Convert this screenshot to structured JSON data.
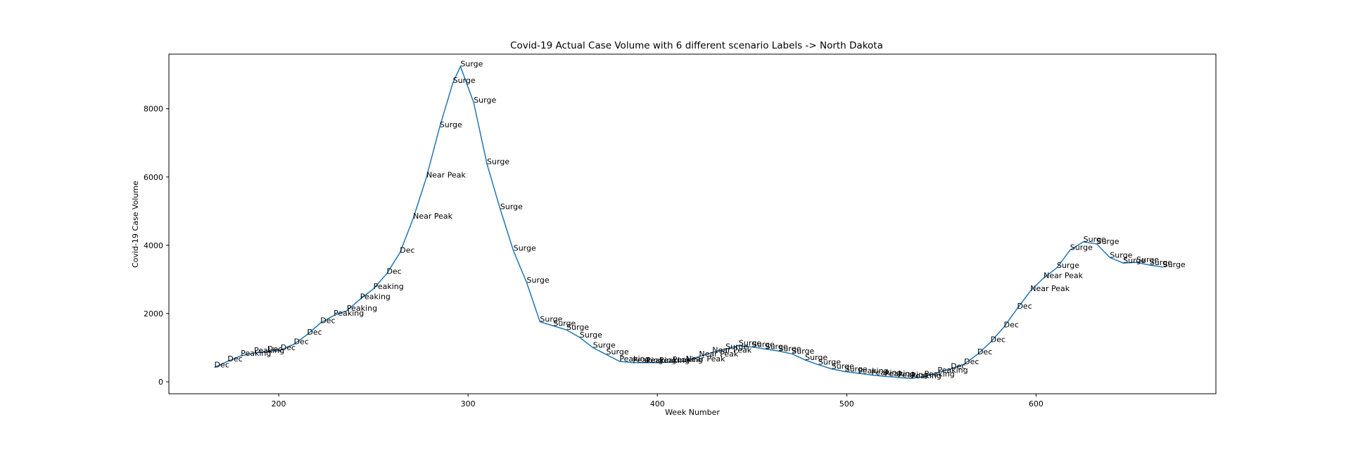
{
  "chart_data": {
    "type": "line",
    "title": "Covid-19 Actual Case Volume with 6 different scenario Labels  -> North Dakota",
    "xlabel": "Week Number",
    "ylabel": "Covid-19 Case Volume",
    "xlim": [
      142,
      695
    ],
    "ylim": [
      -350,
      9600
    ],
    "xticks": [
      200,
      300,
      400,
      500,
      600
    ],
    "yticks": [
      0,
      2000,
      4000,
      6000,
      8000
    ],
    "grid": false,
    "color": "#1f77b4",
    "series": [
      {
        "x": [
          166,
          173,
          180,
          187,
          194,
          201,
          208,
          215,
          222,
          229,
          236,
          243,
          250,
          257,
          264,
          271,
          278,
          285,
          292,
          296,
          303,
          310,
          317,
          324,
          331,
          338,
          345,
          352,
          359,
          366,
          373,
          380,
          387,
          394,
          401,
          408,
          415,
          422,
          429,
          436,
          443,
          450,
          457,
          464,
          471,
          478,
          485,
          492,
          499,
          506,
          513,
          520,
          527,
          534,
          541,
          548,
          555,
          562,
          569,
          576,
          583,
          590,
          597,
          604,
          611,
          618,
          625,
          632,
          639,
          646,
          653,
          660,
          667
        ],
        "y": [
          420,
          600,
          760,
          840,
          890,
          930,
          1100,
          1380,
          1720,
          1940,
          2080,
          2420,
          2720,
          3160,
          3780,
          4780,
          5980,
          7460,
          8760,
          9240,
          8180,
          6380,
          5060,
          3840,
          2900,
          1760,
          1640,
          1520,
          1300,
          1000,
          800,
          600,
          560,
          560,
          560,
          580,
          600,
          740,
          860,
          960,
          1060,
          1020,
          960,
          900,
          820,
          640,
          500,
          380,
          300,
          250,
          200,
          160,
          130,
          100,
          150,
          270,
          380,
          520,
          800,
          1160,
          1600,
          2140,
          2660,
          3040,
          3340,
          3860,
          4100,
          4040,
          3640,
          3480,
          3500,
          3420,
          3360
        ]
      }
    ],
    "labels": [
      "Dec",
      "Dec",
      "Peaking",
      "Peaking",
      "Dec",
      "Dec",
      "Dec",
      "Dec",
      "Dec",
      "Peaking",
      "Peaking",
      "Peaking",
      "Peaking",
      "Dec",
      "Dec",
      "Near Peak",
      "Near Peak",
      "Surge",
      "Surge",
      "Surge",
      "Surge",
      "Surge",
      "Surge",
      "Surge",
      "Surge",
      "Surge",
      "Surge",
      "Surge",
      "Surge",
      "Surge",
      "Surge",
      "Peaking",
      "Peaking",
      "Peaking",
      "Peaking",
      "Peaking",
      "Near Peak",
      "Near Peak",
      "Near Peak",
      "Surge",
      "Surge",
      "Surge",
      "Surge",
      "Surge",
      "Surge",
      "Surge",
      "Surge",
      "Surge",
      "Surge",
      "Peaking",
      "Peaking",
      "Peaking",
      "Peaking",
      "Peaking",
      "Peaking",
      "Peaking",
      "Dec",
      "Dec",
      "Dec",
      "Dec",
      "Dec",
      "Dec",
      "Near Peak",
      "Near Peak",
      "Surge",
      "Surge",
      "Surge",
      "Surge",
      "Surge",
      "Surge",
      "Surge",
      "Surge",
      "Surge"
    ]
  }
}
